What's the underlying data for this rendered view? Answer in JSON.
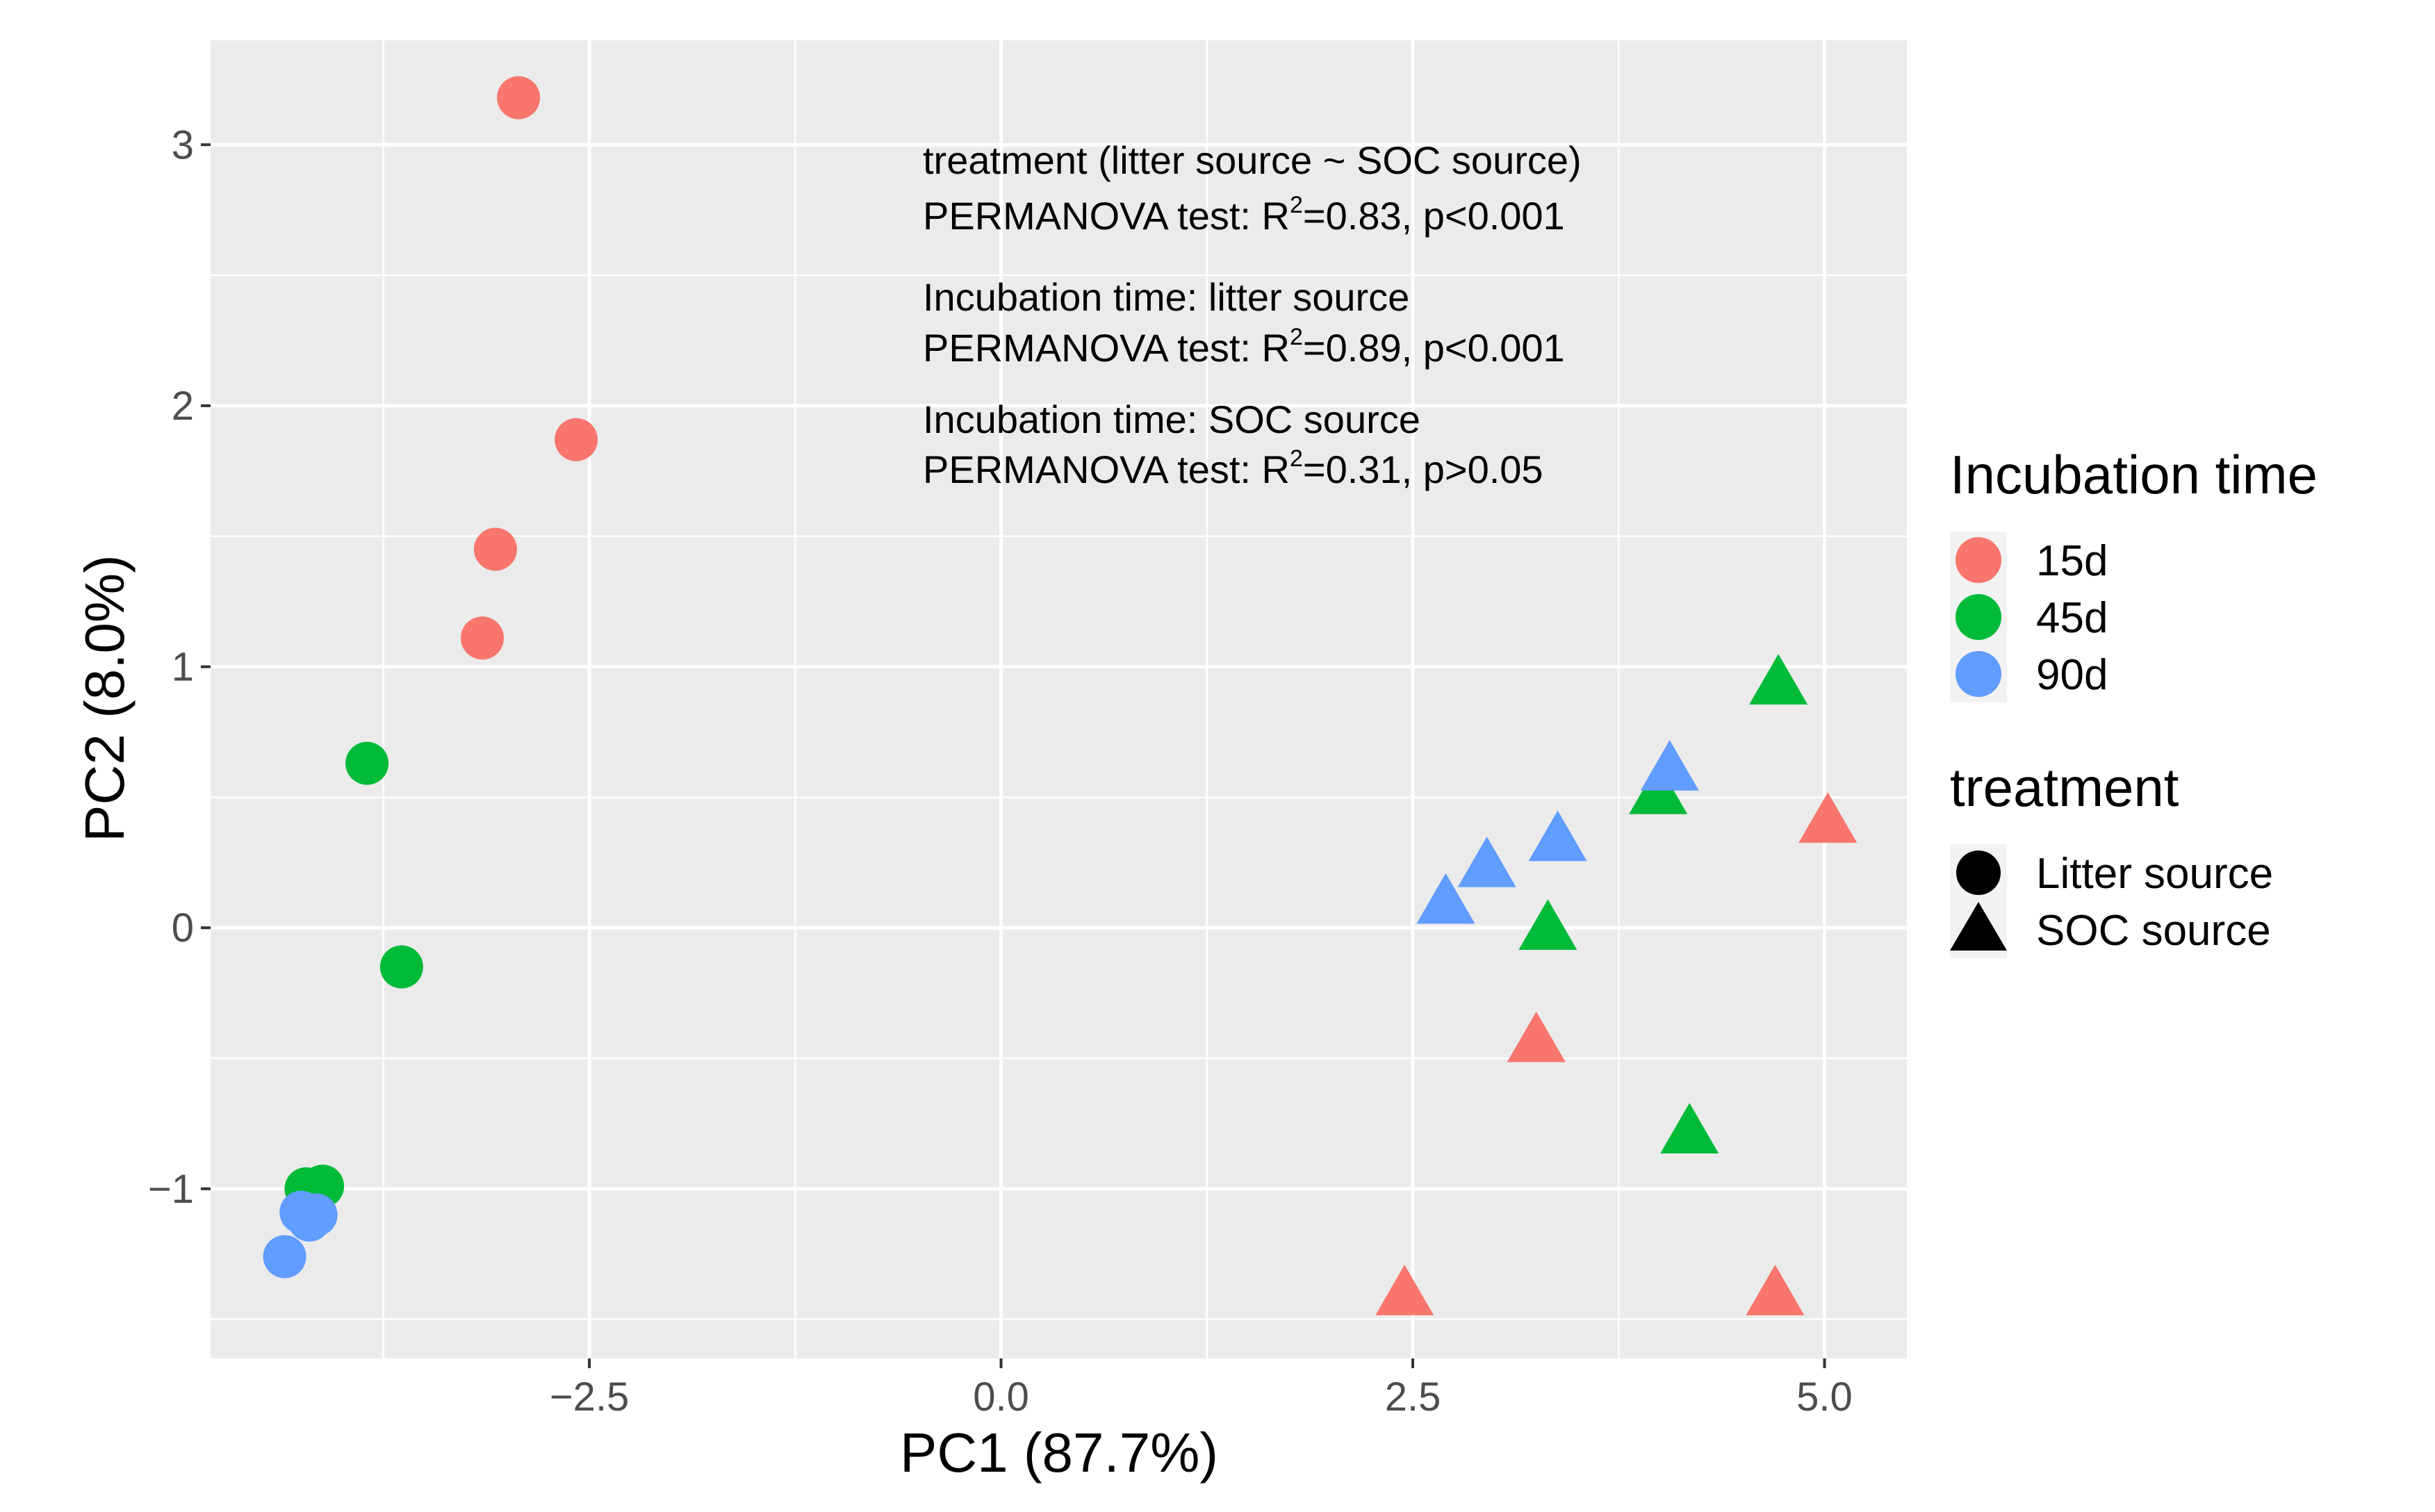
{
  "chart_data": {
    "type": "scatter",
    "title": "",
    "xlabel": "PC1 (87.7%)",
    "ylabel": "PC2 (8.0%)",
    "xlim": [
      -4.8,
      5.5
    ],
    "ylim": [
      -1.65,
      3.4
    ],
    "x_ticks": [
      -2.5,
      0.0,
      2.5,
      5.0
    ],
    "x_tick_labels": [
      "−2.5",
      "0.0",
      "2.5",
      "5.0"
    ],
    "y_ticks": [
      -1,
      0,
      1,
      2,
      3
    ],
    "y_tick_labels": [
      "−1",
      "0",
      "1",
      "2",
      "3"
    ],
    "grid": true,
    "annotations": [
      "treatment (litter source ~ SOC source)",
      "PERMANOVA test: R²=0.83, p<0.001",
      "Incubation time: litter source",
      "PERMANOVA test: R²=0.89, p<0.001",
      "Incubation time: SOC source",
      "PERMANOVA test: R²=0.31, p>0.05"
    ],
    "legend": {
      "placement": "right",
      "color_title": "Incubation time",
      "color_entries": [
        {
          "label": "15d",
          "color": "#F8766D"
        },
        {
          "label": "45d",
          "color": "#00BA38"
        },
        {
          "label": "90d",
          "color": "#619CFF"
        }
      ],
      "shape_title": "treatment",
      "shape_entries": [
        {
          "label": "Litter source",
          "shape": "circle"
        },
        {
          "label": "SOC source",
          "shape": "triangle"
        }
      ]
    },
    "series": [
      {
        "name": "15d Litter source",
        "color": "#F8766D",
        "shape": "circle",
        "points": [
          [
            -2.93,
            3.18
          ],
          [
            -2.58,
            1.87
          ],
          [
            -3.07,
            1.45
          ],
          [
            -3.15,
            1.11
          ]
        ]
      },
      {
        "name": "45d Litter source",
        "color": "#00BA38",
        "shape": "circle",
        "points": [
          [
            -3.85,
            0.63
          ],
          [
            -3.64,
            -0.15
          ],
          [
            -4.12,
            -0.99
          ],
          [
            -4.22,
            -1.0
          ]
        ]
      },
      {
        "name": "90d Litter source",
        "color": "#619CFF",
        "shape": "circle",
        "points": [
          [
            -4.35,
            -1.26
          ],
          [
            -4.25,
            -1.09
          ],
          [
            -4.16,
            -1.1
          ],
          [
            -4.2,
            -1.12
          ]
        ]
      },
      {
        "name": "15d SOC source",
        "color": "#F8766D",
        "shape": "triangle",
        "points": [
          [
            2.45,
            -1.42
          ],
          [
            3.25,
            -0.45
          ],
          [
            4.7,
            -1.42
          ],
          [
            5.02,
            0.39
          ]
        ]
      },
      {
        "name": "45d SOC source",
        "color": "#00BA38",
        "shape": "triangle",
        "points": [
          [
            3.32,
            -0.02
          ],
          [
            3.99,
            0.5
          ],
          [
            4.18,
            -0.8
          ],
          [
            4.72,
            0.92
          ]
        ]
      },
      {
        "name": "90d SOC source",
        "color": "#619CFF",
        "shape": "triangle",
        "points": [
          [
            2.7,
            0.08
          ],
          [
            2.95,
            0.22
          ],
          [
            3.38,
            0.32
          ],
          [
            4.06,
            0.59
          ]
        ]
      }
    ]
  }
}
